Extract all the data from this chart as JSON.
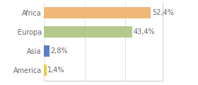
{
  "categories": [
    "America",
    "Asia",
    "Europa",
    "Africa"
  ],
  "values": [
    1.4,
    2.8,
    43.4,
    52.4
  ],
  "labels": [
    "1,4%",
    "2,8%",
    "43,4%",
    "52,4%"
  ],
  "bar_colors": [
    "#f5c842",
    "#5b7fc4",
    "#b5c98e",
    "#f0b878"
  ],
  "background_color": "#ffffff",
  "xlim": [
    0,
    58
  ],
  "label_fontsize": 7.0,
  "tick_fontsize": 7.0,
  "text_color": "#666666",
  "grid_color": "#e0e0e0",
  "spine_color": "#cccccc"
}
